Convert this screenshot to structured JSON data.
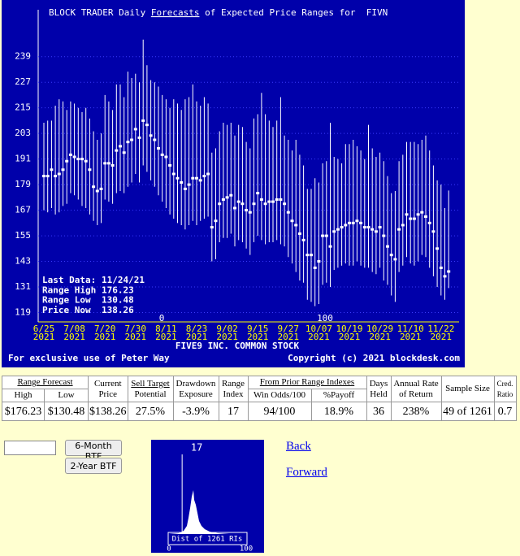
{
  "chart_data": {
    "type": "range",
    "title_prefix": "BLOCK TRADER Daily ",
    "title_link": "Forecasts",
    "title_suffix": " of Expected Price Ranges for  FIVN",
    "x_title": "FIVE9 INC. COMMON STOCK",
    "footer_left": "For exclusive use of Peter Way",
    "footer_right": "Copyright (c) 2021 blockdesk.com",
    "categories": [
      "6/25",
      null,
      null,
      null,
      null,
      null,
      null,
      null,
      "7/08",
      null,
      null,
      null,
      null,
      null,
      null,
      null,
      "7/20",
      null,
      null,
      null,
      null,
      null,
      null,
      null,
      "7/30",
      null,
      null,
      null,
      null,
      null,
      null,
      null,
      "8/11",
      null,
      null,
      null,
      null,
      null,
      null,
      null,
      "8/23",
      null,
      null,
      null,
      null,
      null,
      null,
      null,
      "9/02",
      null,
      null,
      null,
      null,
      null,
      null,
      null,
      "9/15",
      null,
      null,
      null,
      null,
      null,
      null,
      null,
      "9/27",
      null,
      null,
      null,
      null,
      null,
      null,
      null,
      "10/07",
      null,
      null,
      null,
      null,
      null,
      null,
      null,
      "10/19",
      null,
      null,
      null,
      null,
      null,
      null,
      null,
      "10/29",
      null,
      null,
      null,
      null,
      null,
      null,
      null,
      "11/10",
      null,
      null,
      null,
      null,
      null,
      null,
      null,
      "11/22",
      null,
      null
    ],
    "category_years": [
      "2021",
      null,
      null,
      null,
      null,
      null,
      null,
      null,
      "2021",
      null,
      null,
      null,
      null,
      null,
      null,
      null,
      "2021",
      null,
      null,
      null,
      null,
      null,
      null,
      null,
      "2021",
      null,
      null,
      null,
      null,
      null,
      null,
      null,
      "2021",
      null,
      null,
      null,
      null,
      null,
      null,
      null,
      "2021",
      null,
      null,
      null,
      null,
      null,
      null,
      null,
      "2021",
      null,
      null,
      null,
      null,
      null,
      null,
      null,
      "2021",
      null,
      null,
      null,
      null,
      null,
      null,
      null,
      "2021",
      null,
      null,
      null,
      null,
      null,
      null,
      null,
      "2021",
      null,
      null,
      null,
      null,
      null,
      null,
      null,
      "2021",
      null,
      null,
      null,
      null,
      null,
      null,
      null,
      "2021",
      null,
      null,
      null,
      null,
      null,
      null,
      null,
      "2021",
      null,
      null,
      null,
      null,
      null,
      null,
      null,
      "2021",
      null,
      null
    ],
    "high": [
      208,
      209,
      209,
      216,
      219,
      218,
      214,
      218,
      217,
      215,
      213,
      215,
      210,
      204,
      200,
      203,
      221,
      218,
      214,
      226,
      226,
      220,
      232,
      229,
      231,
      227,
      247,
      235,
      228,
      227,
      225,
      221,
      219,
      215,
      219,
      217,
      214,
      219,
      220,
      226,
      218,
      216,
      220,
      217,
      194,
      196,
      204,
      208,
      207,
      208,
      202,
      207,
      206,
      199,
      196,
      210,
      212,
      222,
      212,
      209,
      206,
      209,
      220,
      202,
      200,
      195,
      200,
      193,
      188,
      177,
      177,
      182,
      180,
      189,
      190,
      208,
      192,
      191,
      189,
      198,
      198,
      200,
      197,
      195,
      191,
      207,
      196,
      192,
      194,
      190,
      183,
      175,
      176,
      190,
      193,
      199,
      199,
      199,
      198,
      200,
      202,
      195,
      188,
      181,
      179,
      168,
      176.23
    ],
    "low": [
      167,
      166,
      168,
      165,
      166,
      169,
      170,
      175,
      174,
      172,
      169,
      168,
      165,
      162,
      160,
      161,
      172,
      171,
      170,
      175,
      176,
      175,
      178,
      180,
      184,
      180,
      188,
      185,
      181,
      178,
      174,
      171,
      168,
      165,
      163,
      161,
      160,
      158,
      160,
      162,
      160,
      162,
      163,
      164,
      143,
      144,
      152,
      154,
      154,
      156,
      150,
      153,
      152,
      149,
      146,
      152,
      155,
      153,
      151,
      152,
      152,
      153,
      151,
      150,
      145,
      142,
      138,
      134,
      133,
      125,
      124,
      122,
      123,
      132,
      133,
      131,
      139,
      140,
      141,
      142,
      141,
      141,
      143,
      141,
      140,
      140,
      138,
      137,
      140,
      134,
      132,
      127,
      124,
      138,
      141,
      145,
      142,
      141,
      143,
      146,
      145,
      140,
      136,
      131,
      127,
      125,
      130.48
    ],
    "price": [
      183,
      183,
      186,
      183,
      184,
      186,
      190,
      193,
      192,
      191,
      191,
      190,
      186,
      178,
      176,
      177,
      189,
      189,
      188,
      195,
      197,
      194,
      199,
      200,
      205,
      201,
      209,
      207,
      202,
      200,
      196,
      193,
      192,
      188,
      184,
      182,
      180,
      177,
      179,
      182,
      182,
      181,
      183,
      184,
      159,
      162,
      170,
      172,
      173,
      174,
      168,
      171,
      170,
      167,
      166,
      170,
      175,
      172,
      170,
      171,
      171,
      172,
      172,
      170,
      166,
      162,
      160,
      156,
      153,
      146,
      146,
      140,
      143,
      155,
      155,
      150,
      157,
      158,
      159,
      160,
      161,
      161,
      162,
      161,
      159,
      159,
      158,
      157,
      159,
      155,
      150,
      146,
      144,
      158,
      160,
      165,
      163,
      163,
      165,
      166,
      164,
      161,
      157,
      149,
      140,
      136,
      138.26
    ],
    "color": "#ffffff",
    "background": "#0000aa",
    "ylim": [
      115,
      261
    ],
    "yticks": [
      119,
      131,
      143,
      155,
      167,
      179,
      191,
      203,
      215,
      227,
      239
    ],
    "grid": true,
    "range_markers": [
      "0",
      "100"
    ],
    "info": [
      {
        "label": "Last Data:",
        "value": "11/24/21"
      },
      {
        "label": "Range High",
        "value": 176.23
      },
      {
        "label": "Range Low",
        "value": 130.48
      },
      {
        "label": "Price Now",
        "value": 138.26
      }
    ]
  },
  "table": {
    "header": [
      "Range Forecast",
      "Current Price",
      "Sell Target",
      "Potential",
      "Drawdown Exposure",
      "Range Index",
      "From Prior Range Indexes",
      "Days Held",
      "Annual Rate of Return",
      "Sample Size",
      "Cred. Ratio"
    ],
    "subheader": [
      "High",
      "Low",
      "Win Odds/100",
      "%Payoff"
    ],
    "row": [
      "$176.23",
      "$130.48",
      "$138.26",
      "27.5%",
      "-3.9%",
      "17",
      "94/100",
      "18.9%",
      "36",
      "238%",
      "49 of 1261",
      "0.7"
    ]
  },
  "buttons": [
    "6-Month BTF",
    "2-Year BTF"
  ],
  "histogram": {
    "marker": 17,
    "label": "Dist of 1261 RIs",
    "xticks": [
      0,
      100
    ]
  },
  "links": [
    "Back",
    "Forward"
  ]
}
